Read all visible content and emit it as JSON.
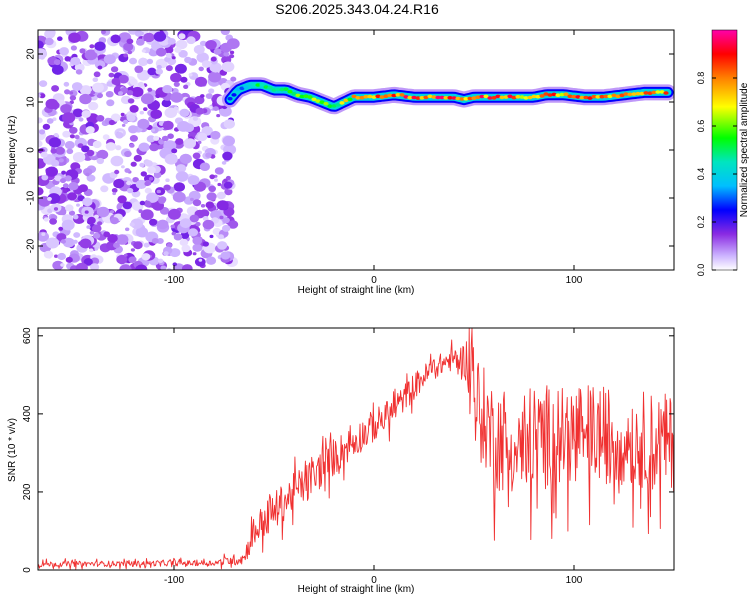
{
  "title": "S206.2025.343.04.24.R16",
  "chart_data": [
    {
      "type": "heatmap",
      "xlabel": "Height of straight line (km)",
      "ylabel": "Frequency (Hz)",
      "xlim": [
        -168,
        150
      ],
      "ylim": [
        -25,
        25
      ],
      "xticks": [
        -100,
        0,
        100
      ],
      "yticks": [
        -20,
        -10,
        0,
        10,
        20
      ],
      "colorbar": {
        "label": "Normalized spectral amplitude",
        "range": [
          0,
          1
        ],
        "ticks": [
          0.0,
          0.2,
          0.4,
          0.6,
          0.8
        ],
        "tick_labels": [
          "0.0",
          "0.2",
          "0.4",
          "0.6",
          "0.8"
        ],
        "colormap": [
          "#ffffff",
          "#ccb3ff",
          "#8a2be2",
          "#0000ff",
          "#00bfff",
          "#00e5c0",
          "#00ff00",
          "#ffff00",
          "#ff8000",
          "#ff0000",
          "#ff00aa"
        ]
      },
      "noise_region": {
        "x_range": [
          -168,
          -70
        ],
        "y_range": [
          -25,
          25
        ]
      },
      "ridge": {
        "x": [
          -72,
          -68,
          -62,
          -56,
          -50,
          -44,
          -38,
          -32,
          -26,
          -20,
          -15,
          -10,
          -5,
          0,
          10,
          20,
          30,
          40,
          45,
          50,
          60,
          70,
          80,
          86,
          95,
          105,
          115,
          125,
          135,
          148
        ],
        "y": [
          10.5,
          12.5,
          13.5,
          13.5,
          12.5,
          12.5,
          11.5,
          11.0,
          10.0,
          9.0,
          10.0,
          11.0,
          11.0,
          11.0,
          11.5,
          11.0,
          11.0,
          11.0,
          10.5,
          11.0,
          11.0,
          11.0,
          11.0,
          11.5,
          11.5,
          11.0,
          11.0,
          11.5,
          12.0,
          12.0
        ],
        "amplitude": [
          0.35,
          0.4,
          0.55,
          0.6,
          0.55,
          0.6,
          0.7,
          0.7,
          0.65,
          0.6,
          0.7,
          0.8,
          0.85,
          0.85,
          0.9,
          0.95,
          0.95,
          0.9,
          0.85,
          0.9,
          0.95,
          0.9,
          0.85,
          0.9,
          0.9,
          0.9,
          0.9,
          0.85,
          0.85,
          0.85
        ]
      }
    },
    {
      "type": "line",
      "xlabel": "Height of straight line (km)",
      "ylabel": "SNR (10 * v/v)",
      "xlim": [
        -168,
        150
      ],
      "ylim": [
        0,
        620
      ],
      "xticks": [
        -100,
        0,
        100
      ],
      "yticks": [
        0,
        200,
        400,
        600
      ],
      "color": "#f03030",
      "envelope": {
        "x": [
          -168,
          -80,
          -65,
          -60,
          -50,
          -40,
          -30,
          -20,
          -10,
          0,
          10,
          20,
          30,
          40,
          45,
          50,
          60,
          80,
          100,
          120,
          150
        ],
        "mean": [
          15,
          18,
          30,
          100,
          150,
          200,
          240,
          290,
          330,
          370,
          410,
          470,
          520,
          540,
          540,
          520,
          420,
          420,
          430,
          420,
          400
        ],
        "spread": [
          10,
          10,
          25,
          60,
          70,
          70,
          70,
          70,
          60,
          60,
          50,
          50,
          40,
          40,
          60,
          180,
          220,
          220,
          210,
          200,
          200
        ]
      }
    }
  ]
}
